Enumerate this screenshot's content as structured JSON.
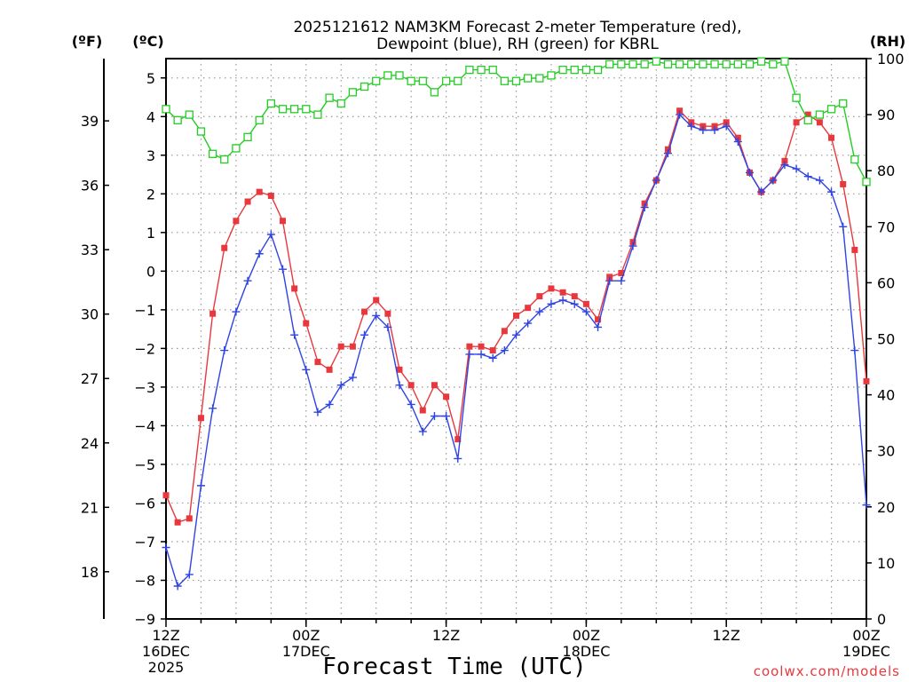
{
  "chart_data": {
    "type": "line",
    "title_line1": "2025121612 NAM3KM Forecast 2-meter Temperature (red),",
    "title_line2": "Dewpoint (blue), RH (green) for KBRL",
    "unit_f": "(ºF)",
    "unit_c": "(ºC)",
    "unit_rh": "(RH)",
    "xlabel": "Forecast Time (UTC)",
    "credit": "coolwx.com/models",
    "x_range_hours": [
      0,
      60
    ],
    "c_range": [
      -9,
      5.5
    ],
    "rh_range": [
      0,
      100
    ],
    "c_ticks": [
      5,
      4,
      3,
      2,
      1,
      0,
      -1,
      -2,
      -3,
      -4,
      -5,
      -6,
      -7,
      -8,
      -9
    ],
    "f_ticks": [
      39,
      36,
      33,
      30,
      27,
      24,
      21,
      18
    ],
    "rh_ticks": [
      100,
      90,
      80,
      70,
      60,
      50,
      40,
      30,
      20,
      10,
      0
    ],
    "x_ticks": [
      {
        "hour": 0,
        "lines": [
          "12Z",
          "16DEC",
          "2025"
        ]
      },
      {
        "hour": 12,
        "lines": [
          "00Z",
          "17DEC"
        ]
      },
      {
        "hour": 24,
        "lines": [
          "12Z"
        ]
      },
      {
        "hour": 36,
        "lines": [
          "00Z",
          "18DEC"
        ]
      },
      {
        "hour": 48,
        "lines": [
          "12Z"
        ]
      },
      {
        "hour": 60,
        "lines": [
          "00Z",
          "19DEC"
        ]
      }
    ],
    "series": [
      {
        "name": "Temperature",
        "color": "#e8383d",
        "marker": "filled-square",
        "values": [
          -5.8,
          -6.5,
          -6.4,
          -3.8,
          -1.1,
          0.6,
          1.3,
          1.8,
          2.05,
          1.95,
          1.3,
          -0.45,
          -1.35,
          -2.35,
          -2.55,
          -1.95,
          -1.95,
          -1.05,
          -0.75,
          -1.1,
          -2.55,
          -2.95,
          -3.6,
          -2.95,
          -3.25,
          -4.35,
          -1.95,
          -1.95,
          -2.05,
          -1.55,
          -1.15,
          -0.95,
          -0.65,
          -0.45,
          -0.55,
          -0.65,
          -0.85,
          -1.25,
          -0.15,
          -0.05,
          0.75,
          1.75,
          2.35,
          3.15,
          4.15,
          3.85,
          3.75,
          3.75,
          3.85,
          3.45,
          2.55,
          2.05,
          2.35,
          2.85,
          3.85,
          4.05,
          3.85,
          3.45,
          2.25,
          0.55,
          -2.85
        ]
      },
      {
        "name": "Dewpoint",
        "color": "#2f44e2",
        "marker": "plus",
        "values": [
          -7.15,
          -8.15,
          -7.85,
          -5.55,
          -3.55,
          -2.05,
          -1.05,
          -0.25,
          0.45,
          0.95,
          0.05,
          -1.65,
          -2.55,
          -3.65,
          -3.45,
          -2.95,
          -2.75,
          -1.65,
          -1.15,
          -1.45,
          -2.95,
          -3.45,
          -4.15,
          -3.75,
          -3.75,
          -4.85,
          -2.15,
          -2.15,
          -2.25,
          -2.05,
          -1.65,
          -1.35,
          -1.05,
          -0.85,
          -0.75,
          -0.85,
          -1.05,
          -1.45,
          -0.25,
          -0.25,
          0.65,
          1.65,
          2.35,
          3.05,
          4.05,
          3.75,
          3.65,
          3.65,
          3.75,
          3.35,
          2.55,
          2.05,
          2.35,
          2.75,
          2.65,
          2.45,
          2.35,
          2.05,
          1.15,
          -2.05,
          -6.05
        ]
      },
      {
        "name": "RH",
        "color": "#25cc25",
        "marker": "open-square",
        "values": [
          91,
          89,
          90,
          87,
          83,
          82,
          84,
          86,
          89,
          92,
          91,
          91,
          91,
          90,
          93,
          92,
          94,
          95,
          96,
          97,
          97,
          96,
          96,
          94,
          96,
          96,
          98,
          98,
          98,
          96,
          96,
          96.5,
          96.5,
          97,
          98,
          98,
          98,
          98,
          99,
          99,
          99,
          99,
          99.5,
          99,
          99,
          99,
          99,
          99,
          99,
          99,
          99,
          99.5,
          99,
          99.5,
          93,
          89,
          90,
          91,
          92,
          82,
          78
        ]
      }
    ]
  }
}
